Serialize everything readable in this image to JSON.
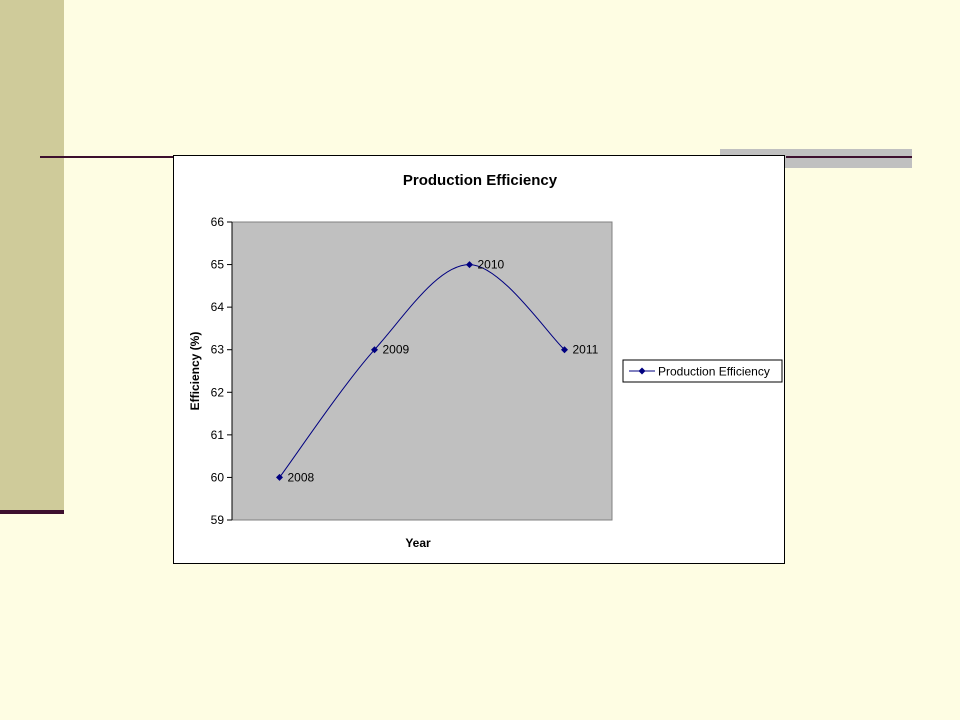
{
  "colors": {
    "slide_background": "#fefde3",
    "left_bar": "#cfcb9a",
    "accent_rule": "#3d0f2e",
    "gray_block": "#c0c0c0",
    "plot_area": "#c0c0c0",
    "series_line": "#000080"
  },
  "chart_data": {
    "type": "line",
    "title": "Production Efficiency",
    "xlabel": "Year",
    "ylabel": "Efficiency (%)",
    "ylim": [
      59,
      66
    ],
    "yticks": [
      59,
      60,
      61,
      62,
      63,
      64,
      65,
      66
    ],
    "categories": [
      "2008",
      "2009",
      "2010",
      "2011"
    ],
    "series": [
      {
        "name": "Production Efficiency",
        "values": [
          60,
          63,
          65,
          63
        ],
        "smoothed": true,
        "marker": "diamond"
      }
    ],
    "data_labels": [
      "2008",
      "2009",
      "2010",
      "2011"
    ],
    "legend_position": "right",
    "grid": false
  }
}
